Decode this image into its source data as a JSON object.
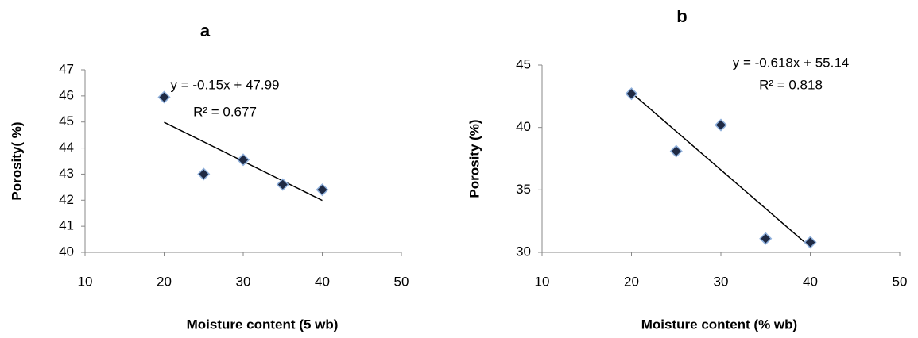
{
  "chart_data": [
    {
      "type": "scatter",
      "title": "a",
      "x_label": "Moisture content (5 wb)",
      "y_label": "Porosity( %)",
      "x": [
        20,
        25,
        30,
        35,
        40
      ],
      "values": [
        45.95,
        43.0,
        43.55,
        42.6,
        42.4
      ],
      "color": "#1f2a44",
      "trendline": {
        "slope": -0.15,
        "intercept": 47.99,
        "equation": "y = -0.15x + 47.99",
        "r2_label": "R² = 0.677"
      },
      "xlim": [
        10,
        50
      ],
      "xticks": [
        10,
        20,
        30,
        40,
        50
      ],
      "ylim": [
        40,
        47
      ],
      "yticks": [
        40,
        41,
        42,
        43,
        44,
        45,
        46,
        47
      ]
    },
    {
      "type": "scatter",
      "title": "b",
      "x_label": "Moisture content (% wb)",
      "y_label": "Porosity (%)",
      "x": [
        20,
        25,
        30,
        35,
        40
      ],
      "values": [
        42.7,
        38.1,
        40.2,
        31.1,
        30.8
      ],
      "color": "#1f2a44",
      "trendline": {
        "slope": -0.618,
        "intercept": 55.14,
        "equation": "y = -0.618x + 55.14",
        "r2_label": "R² = 0.818"
      },
      "xlim": [
        10,
        50
      ],
      "xticks": [
        10,
        20,
        30,
        40,
        50
      ],
      "ylim": [
        30,
        45
      ],
      "yticks": [
        30,
        35,
        40,
        45
      ]
    }
  ]
}
